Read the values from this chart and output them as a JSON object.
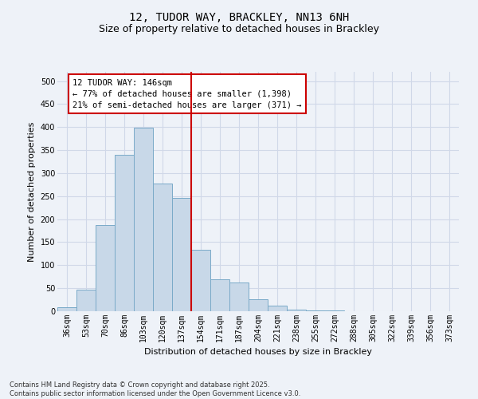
{
  "title_line1": "12, TUDOR WAY, BRACKLEY, NN13 6NH",
  "title_line2": "Size of property relative to detached houses in Brackley",
  "xlabel": "Distribution of detached houses by size in Brackley",
  "ylabel": "Number of detached properties",
  "categories": [
    "36sqm",
    "53sqm",
    "70sqm",
    "86sqm",
    "103sqm",
    "120sqm",
    "137sqm",
    "154sqm",
    "171sqm",
    "187sqm",
    "204sqm",
    "221sqm",
    "238sqm",
    "255sqm",
    "272sqm",
    "288sqm",
    "305sqm",
    "322sqm",
    "339sqm",
    "356sqm",
    "373sqm"
  ],
  "values": [
    8,
    46,
    187,
    340,
    398,
    278,
    246,
    134,
    70,
    62,
    26,
    12,
    4,
    2,
    1,
    0,
    0,
    0,
    0,
    0,
    0
  ],
  "bar_color": "#c8d8e8",
  "bar_edge_color": "#7aaac8",
  "bar_width": 1.0,
  "grid_color": "#d0d8e8",
  "bg_color": "#eef2f8",
  "vline_color": "#cc0000",
  "annotation_title": "12 TUDOR WAY: 146sqm",
  "annotation_line1": "← 77% of detached houses are smaller (1,398)",
  "annotation_line2": "21% of semi-detached houses are larger (371) →",
  "annotation_box_color": "#ffffff",
  "annotation_box_edge": "#cc0000",
  "ylim": [
    0,
    520
  ],
  "yticks": [
    0,
    50,
    100,
    150,
    200,
    250,
    300,
    350,
    400,
    450,
    500
  ],
  "footer_line1": "Contains HM Land Registry data © Crown copyright and database right 2025.",
  "footer_line2": "Contains public sector information licensed under the Open Government Licence v3.0.",
  "title_fontsize": 10,
  "subtitle_fontsize": 9,
  "label_fontsize": 8,
  "tick_fontsize": 7,
  "annotation_fontsize": 7.5,
  "footer_fontsize": 6
}
